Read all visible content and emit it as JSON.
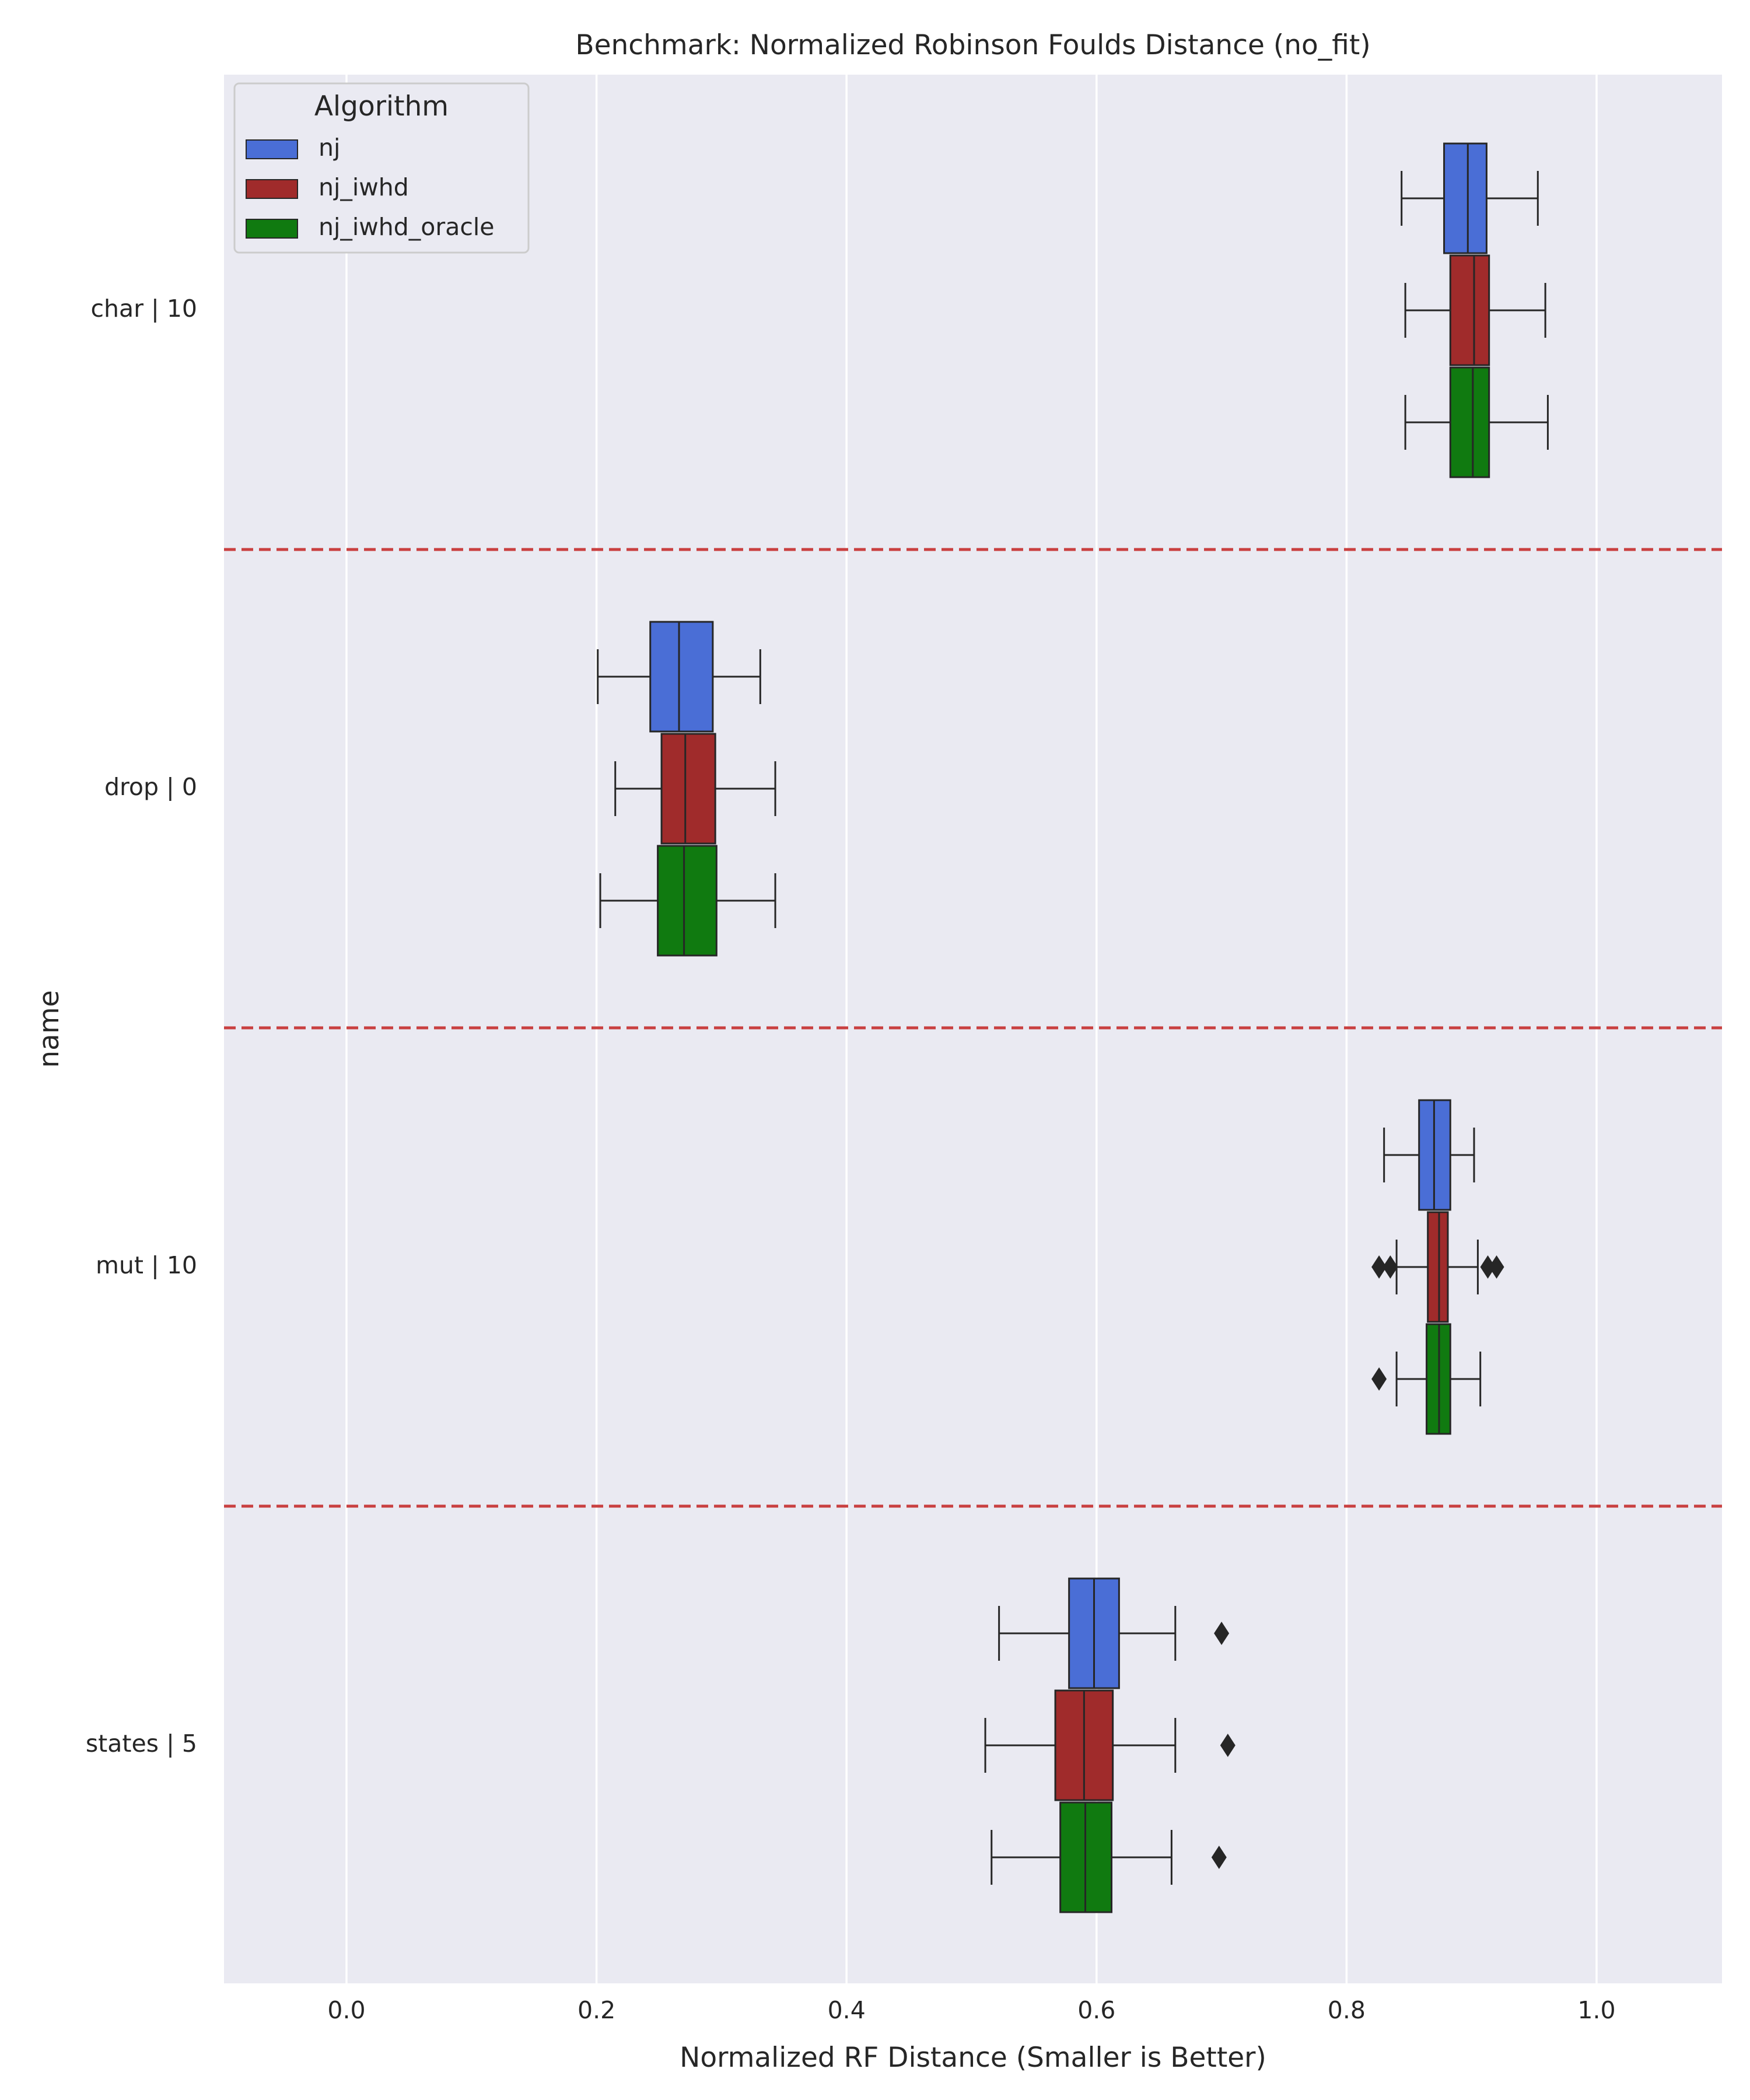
{
  "chart_data": {
    "type": "boxplot",
    "orientation": "horizontal",
    "title": "Benchmark: Normalized Robinson Foulds Distance (no_fit)",
    "xlabel": "Normalized RF Distance (Smaller is Better)",
    "ylabel": "name",
    "xlim": [
      -0.1,
      1.1
    ],
    "xticks": [
      0.0,
      0.2,
      0.4,
      0.6,
      0.8,
      1.0
    ],
    "xtick_labels": [
      "0.0",
      "0.2",
      "0.4",
      "0.6",
      "0.8",
      "1.0"
    ],
    "categories": [
      "char | 10",
      "drop | 0",
      "mut | 10",
      "states | 5"
    ],
    "grid": true,
    "separator_lines": "dashed red lines between categories",
    "legend": {
      "title": "Algorithm",
      "placement": "top-left",
      "entries": [
        "nj",
        "nj_iwhd",
        "nj_iwhd_oracle"
      ]
    },
    "series": [
      {
        "name": "nj",
        "color": "#4a6ed6",
        "boxes": [
          {
            "whislo": 0.844,
            "q1": 0.878,
            "med": 0.897,
            "q3": 0.912,
            "whishi": 0.953,
            "fliers": []
          },
          {
            "whislo": 0.201,
            "q1": 0.243,
            "med": 0.266,
            "q3": 0.293,
            "whishi": 0.331,
            "fliers": []
          },
          {
            "whislo": 0.83,
            "q1": 0.858,
            "med": 0.87,
            "q3": 0.883,
            "whishi": 0.902,
            "fliers": []
          },
          {
            "whislo": 0.522,
            "q1": 0.578,
            "med": 0.598,
            "q3": 0.618,
            "whishi": 0.663,
            "fliers": [
              0.7
            ]
          }
        ]
      },
      {
        "name": "nj_iwhd",
        "color": "#a02b2b",
        "boxes": [
          {
            "whislo": 0.847,
            "q1": 0.883,
            "med": 0.902,
            "q3": 0.914,
            "whishi": 0.959,
            "fliers": []
          },
          {
            "whislo": 0.215,
            "q1": 0.252,
            "med": 0.271,
            "q3": 0.295,
            "whishi": 0.343,
            "fliers": []
          },
          {
            "whislo": 0.84,
            "q1": 0.865,
            "med": 0.874,
            "q3": 0.881,
            "whishi": 0.905,
            "fliers": [
              0.826,
              0.835,
              0.913,
              0.92
            ]
          },
          {
            "whislo": 0.511,
            "q1": 0.567,
            "med": 0.59,
            "q3": 0.613,
            "whishi": 0.663,
            "fliers": [
              0.705
            ]
          }
        ]
      },
      {
        "name": "nj_iwhd_oracle",
        "color": "#107a10",
        "boxes": [
          {
            "whislo": 0.847,
            "q1": 0.883,
            "med": 0.901,
            "q3": 0.914,
            "whishi": 0.961,
            "fliers": []
          },
          {
            "whislo": 0.203,
            "q1": 0.249,
            "med": 0.27,
            "q3": 0.296,
            "whishi": 0.343,
            "fliers": []
          },
          {
            "whislo": 0.84,
            "q1": 0.864,
            "med": 0.874,
            "q3": 0.883,
            "whishi": 0.907,
            "fliers": [
              0.826
            ]
          },
          {
            "whislo": 0.516,
            "q1": 0.571,
            "med": 0.591,
            "q3": 0.612,
            "whishi": 0.66,
            "fliers": [
              0.698
            ]
          }
        ]
      }
    ]
  }
}
